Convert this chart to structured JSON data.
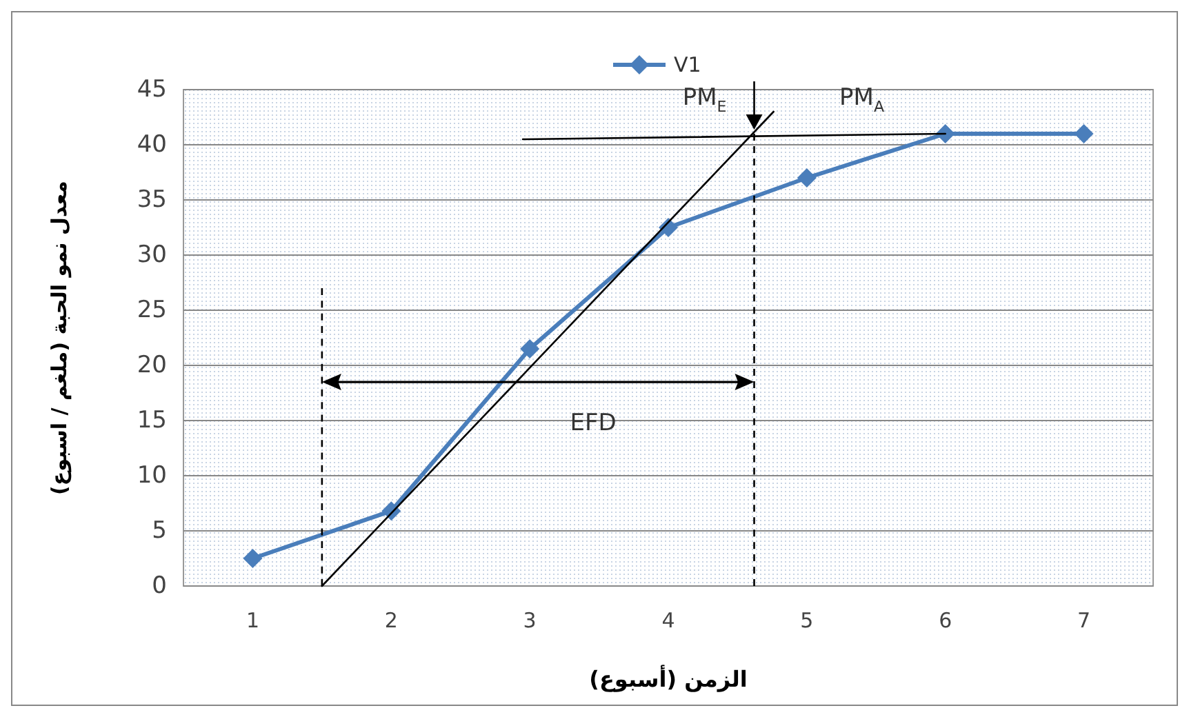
{
  "chart_data": {
    "type": "line",
    "xlabel": "الزمن (أسبوع)",
    "ylabel": "معدل نمو الحبة (ملغم / اسبوع)",
    "xlim": [
      0.5,
      7.5
    ],
    "xticks": [
      1,
      2,
      3,
      4,
      5,
      6,
      7
    ],
    "ylim": [
      0,
      45
    ],
    "yticks": [
      0,
      5,
      10,
      15,
      20,
      25,
      30,
      35,
      40,
      45
    ],
    "grid": "y",
    "legend": "top",
    "series": [
      {
        "name": "V1",
        "color": "#4a7ebb",
        "x": [
          1,
          2,
          3,
          4,
          5,
          6,
          7
        ],
        "values": [
          2.5,
          6.8,
          21.5,
          32.5,
          37,
          41,
          41
        ],
        "marker": "diamond"
      },
      {
        "color": "#000000",
        "x": [
          1.5,
          4.76
        ],
        "values": [
          0,
          43
        ]
      },
      {
        "color": "#000000",
        "x": [
          2.95,
          6
        ],
        "values": [
          40.5,
          41
        ]
      },
      {
        "color": "#000000",
        "x": [
          1.5,
          1.5
        ],
        "values": [
          0,
          27
        ],
        "line_style": "dashed"
      },
      {
        "color": "#000000",
        "x": [
          4.62,
          4.62
        ],
        "values": [
          0,
          41
        ],
        "line_style": "dashed"
      }
    ],
    "annotations": [
      "EFD",
      "PM$_{E}$",
      "PM$_{A}$"
    ]
  }
}
